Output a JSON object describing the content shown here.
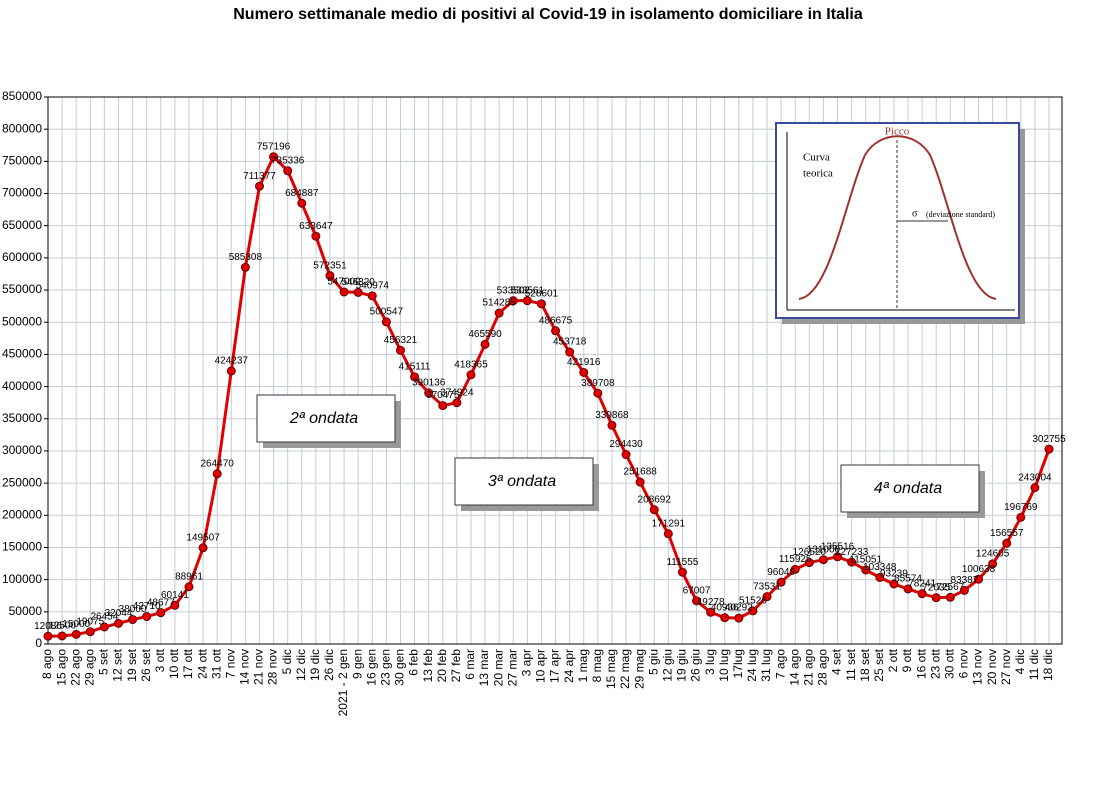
{
  "chart_data": {
    "type": "line",
    "title": "Numero settimanale medio di positivi al Covid-19  in isolamento domiciliare in Italia",
    "categories": [
      "8 ago",
      "15 ago",
      "22 ago",
      "29 ago",
      "5 set",
      "12 set",
      "19 set",
      "26 set",
      "3 ott",
      "10 ott",
      "17 ott",
      "24 ott",
      "31 ott",
      "7 nov",
      "14 nov",
      "21 nov",
      "28 nov",
      "5 dic",
      "12 dic",
      "19 dic",
      "26 dic",
      "2021 - 2 gen",
      "9 gen",
      "16 gen",
      "23 gen",
      "30 gen",
      "6 feb",
      "13 feb",
      "20 feb",
      "27 feb",
      "6 mar",
      "13 mar",
      "20 mar",
      "27 mar",
      "3 apr",
      "10 apr",
      "17 apr",
      "24 apr",
      "1 mag",
      "8 mag",
      "15 mag",
      "22 mag",
      "29 mag",
      "5 giu",
      "12 giu",
      "19 giu",
      "26 giu",
      "3 lug",
      "10 lug",
      "17lug",
      "24 lug",
      "31 lug",
      "7 ago",
      "14 ago",
      "21 ago",
      "28 ago",
      "4 set",
      "11 set",
      "18 set",
      "25 set",
      "2 ott",
      "9 ott",
      "16 ott",
      "23 ott",
      "30 ott",
      "6 nov",
      "13 nov",
      "20 nov",
      "27 nov",
      "4 dic",
      "11 dic",
      "18 dic"
    ],
    "series": [
      {
        "name": "Positivi in isolamento domiciliare",
        "color": "#e00000",
        "values": [
          12086,
          12500,
          15000,
          19075,
          26454,
          32044,
          38000,
          42710,
          48677,
          60141,
          88961,
          149507,
          264470,
          424237,
          585308,
          711377,
          757196,
          735336,
          684887,
          633647,
          572351,
          547000,
          546320,
          540974,
          500547,
          456321,
          415111,
          390136,
          370475,
          374924,
          418365,
          465590,
          514285,
          533502,
          533561,
          528601,
          486675,
          453718,
          421916,
          389708,
          339868,
          294430,
          251688,
          208692,
          171291,
          111555,
          67007,
          49278,
          40936,
          40292,
          51526,
          73531,
          96040,
          115925,
          126520,
          131000,
          135516,
          127233,
          115051,
          103348,
          93239,
          85574,
          78241,
          72035,
          72567,
          83387,
          100638,
          124605,
          156557,
          196769,
          243004,
          302755
        ]
      }
    ],
    "ylim": [
      0,
      850000
    ],
    "yticks": [
      0,
      50000,
      100000,
      150000,
      200000,
      250000,
      300000,
      350000,
      400000,
      450000,
      500000,
      550000,
      600000,
      650000,
      700000,
      750000,
      800000,
      850000
    ],
    "grid": true,
    "annotations": [
      "2ª ondata",
      "3ª ondata",
      "4ª ondata"
    ],
    "inset": {
      "peak": "Picco",
      "curve": [
        "Curva",
        "teorica"
      ],
      "sigma": "σ",
      "sigma_note": "(deviazione standard)"
    }
  }
}
